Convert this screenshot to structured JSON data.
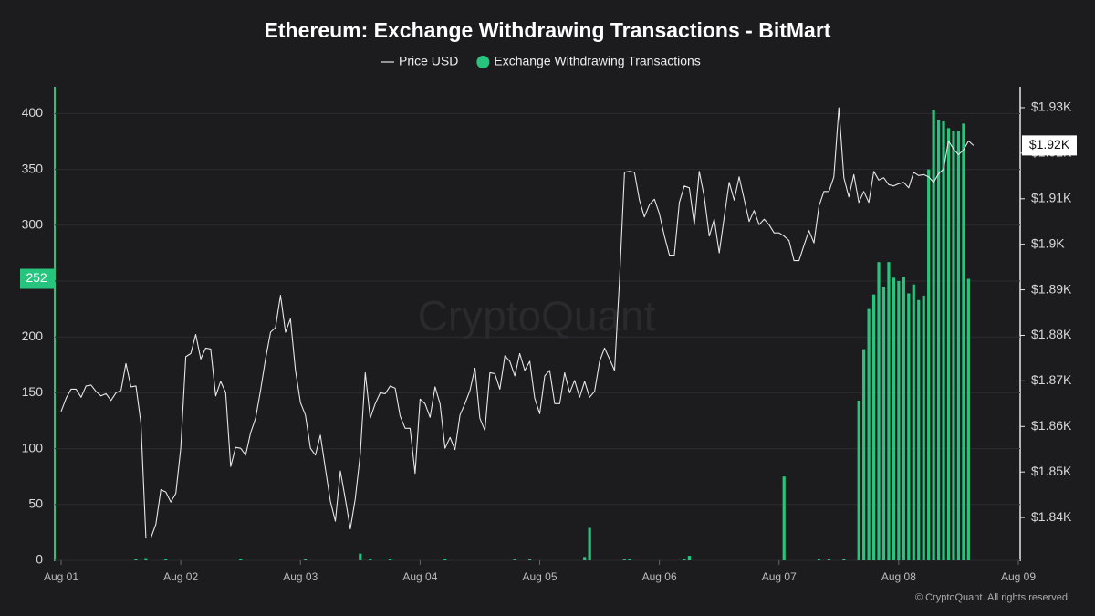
{
  "chart_data": {
    "type": "bar-line",
    "title": "Ethereum: Exchange Withdrawing Transactions - BitMart",
    "watermark": "CryptoQuant",
    "source": "© CryptoQuant. All rights reserved",
    "categories": [
      "Aug 01",
      null,
      null,
      null,
      null,
      null,
      null,
      null,
      null,
      null,
      null,
      null,
      null,
      null,
      null,
      null,
      null,
      null,
      null,
      null,
      null,
      null,
      null,
      null,
      "Aug 02",
      null,
      null,
      null,
      null,
      null,
      null,
      null,
      null,
      null,
      null,
      null,
      null,
      null,
      null,
      null,
      null,
      null,
      null,
      null,
      null,
      null,
      null,
      null,
      "Aug 03",
      null,
      null,
      null,
      null,
      null,
      null,
      null,
      null,
      null,
      null,
      null,
      null,
      null,
      null,
      null,
      null,
      null,
      null,
      null,
      null,
      null,
      null,
      null,
      "Aug 04",
      null,
      null,
      null,
      null,
      null,
      null,
      null,
      null,
      null,
      null,
      null,
      null,
      null,
      null,
      null,
      null,
      null,
      null,
      null,
      null,
      null,
      null,
      null,
      "Aug 05",
      null,
      null,
      null,
      null,
      null,
      null,
      null,
      null,
      null,
      null,
      null,
      null,
      null,
      null,
      null,
      null,
      null,
      null,
      null,
      null,
      null,
      null,
      null,
      "Aug 06",
      null,
      null,
      null,
      null,
      null,
      null,
      null,
      null,
      null,
      null,
      null,
      null,
      null,
      null,
      null,
      null,
      null,
      null,
      null,
      null,
      null,
      null,
      null,
      "Aug 07",
      null,
      null,
      null,
      null,
      null,
      null,
      null,
      null,
      null,
      null,
      null,
      null,
      null,
      null,
      null,
      null,
      null,
      null,
      null,
      null,
      null,
      null,
      null,
      "Aug 08",
      null,
      null,
      null,
      null,
      null,
      null,
      null,
      null,
      null,
      null,
      null,
      null,
      null,
      null,
      null,
      null,
      null,
      null,
      null,
      null,
      null,
      null,
      null,
      "Aug 09"
    ],
    "series": [
      {
        "name": "Price USD",
        "type": "line",
        "axis": "y2",
        "color": "#e6e6e6",
        "values": [
          1863.3,
          1866.2,
          1868.2,
          1868.2,
          1866.4,
          1868.9,
          1869.1,
          1867.7,
          1866.7,
          1867.2,
          1865.7,
          1867.4,
          1867.9,
          1873.8,
          1868.7,
          1868.9,
          1860.8,
          1835.5,
          1835.5,
          1838.5,
          1846.1,
          1845.6,
          1843.4,
          1845.3,
          1855.2,
          1875.3,
          1876.0,
          1880.2,
          1874.8,
          1877.2,
          1877.0,
          1866.7,
          1869.9,
          1867.4,
          1851.2,
          1855.4,
          1855.2,
          1853.7,
          1858.6,
          1861.8,
          1867.9,
          1874.8,
          1880.7,
          1881.7,
          1888.8,
          1880.7,
          1883.6,
          1872.3,
          1865.2,
          1862.5,
          1855.2,
          1853.7,
          1858.1,
          1850.7,
          1843.6,
          1839.2,
          1850.2,
          1844.1,
          1837.5,
          1844.1,
          1853.9,
          1871.8,
          1861.8,
          1865.0,
          1867.4,
          1867.2,
          1868.9,
          1868.4,
          1862.3,
          1859.6,
          1859.6,
          1849.7,
          1866.0,
          1865.0,
          1862.0,
          1868.7,
          1865.0,
          1855.2,
          1857.6,
          1854.9,
          1862.5,
          1865.0,
          1867.9,
          1872.8,
          1861.8,
          1859.1,
          1871.8,
          1871.6,
          1868.2,
          1875.5,
          1874.3,
          1871.1,
          1876.0,
          1872.3,
          1874.3,
          1866.2,
          1862.8,
          1871.1,
          1872.3,
          1865.0,
          1865.0,
          1871.8,
          1867.4,
          1870.1,
          1866.4,
          1869.9,
          1866.4,
          1867.7,
          1874.3,
          1877.2,
          1874.8,
          1872.3,
          1892.0,
          1915.8,
          1916.0,
          1915.8,
          1909.7,
          1906.0,
          1908.7,
          1909.9,
          1906.7,
          1901.8,
          1897.6,
          1897.6,
          1909.2,
          1912.8,
          1912.4,
          1904.3,
          1916.0,
          1910.4,
          1901.8,
          1905.5,
          1898.1,
          1906.0,
          1913.6,
          1909.7,
          1914.8,
          1909.9,
          1905.0,
          1907.4,
          1904.3,
          1905.5,
          1904.3,
          1902.5,
          1902.5,
          1901.8,
          1900.8,
          1896.4,
          1896.4,
          1899.8,
          1903.0,
          1900.3,
          1908.4,
          1911.6,
          1911.6,
          1914.8,
          1930.0,
          1914.6,
          1910.4,
          1915.3,
          1909.2,
          1911.6,
          1909.2,
          1916.0,
          1914.1,
          1914.6,
          1913.1,
          1912.8,
          1913.3,
          1913.6,
          1912.4,
          1915.8,
          1915.1,
          1915.3,
          1914.8,
          1913.6,
          1915.5,
          1916.5,
          1922.7,
          1920.9,
          1919.7,
          1920.7,
          1922.7,
          1921.7,
          null,
          null,
          null,
          null,
          null,
          null,
          null,
          null,
          null
        ],
        "value_labels": [
          null,
          null,
          null,
          null,
          null,
          null,
          null,
          null,
          null,
          null,
          null,
          null,
          null,
          null,
          null,
          null,
          null,
          null,
          null,
          null,
          null,
          null,
          null,
          null,
          null,
          null,
          null,
          null,
          null,
          null,
          null,
          null,
          null,
          null,
          null,
          null,
          null,
          null,
          null,
          null,
          null,
          null,
          null,
          null,
          null,
          null,
          null,
          null,
          null,
          null,
          null,
          null,
          null,
          null,
          null,
          null,
          null,
          null,
          null,
          null,
          null,
          null,
          null,
          null,
          null,
          null,
          null,
          null,
          null,
          null,
          null,
          null,
          null,
          null,
          null,
          null,
          null,
          null,
          null,
          null,
          null,
          null,
          null,
          null,
          null,
          null,
          null,
          null,
          null,
          null,
          null,
          null,
          null,
          null,
          null,
          null,
          null,
          null,
          null,
          null,
          null,
          null,
          null,
          null,
          null,
          null,
          null,
          null,
          null,
          null,
          null,
          null,
          null,
          null,
          null,
          null,
          null,
          null,
          null,
          null,
          null,
          null,
          null,
          null,
          null,
          null,
          null,
          null,
          null,
          null,
          null,
          null,
          null,
          null,
          null,
          null,
          null,
          null,
          null,
          null,
          null,
          null,
          null,
          null,
          null,
          null,
          null,
          null,
          null,
          null,
          null,
          null,
          null,
          null,
          null,
          null,
          null,
          null,
          null,
          null,
          null,
          null,
          null,
          null,
          null,
          null,
          null,
          null,
          null,
          null,
          null,
          null,
          null,
          null,
          null,
          null,
          null,
          null,
          null,
          null,
          null,
          null,
          null,
          "$1.92K",
          null,
          null,
          null,
          null,
          null,
          null,
          null,
          null,
          null
        ]
      },
      {
        "name": "Exchange Withdrawing Transactions",
        "type": "bar",
        "color": "#27c47d",
        "values": [
          0,
          0,
          0,
          0,
          0,
          0,
          0,
          0,
          0,
          0,
          0,
          0,
          0,
          0,
          0,
          1,
          0,
          2,
          0,
          0,
          0,
          1,
          0,
          0,
          0,
          0,
          0,
          0,
          0,
          0,
          0,
          0,
          0,
          0,
          0,
          0,
          1,
          0,
          0,
          0,
          0,
          0,
          0,
          0,
          0,
          0,
          0,
          0,
          0,
          1,
          0,
          0,
          0,
          0,
          0,
          0,
          0,
          0,
          0,
          0,
          6,
          0,
          1,
          0,
          0,
          0,
          1,
          0,
          0,
          0,
          0,
          0,
          0,
          0,
          0,
          0,
          0,
          1,
          0,
          0,
          0,
          0,
          0,
          0,
          0,
          0,
          0,
          0,
          0,
          0,
          0,
          1,
          0,
          0,
          1,
          0,
          0,
          0,
          0,
          0,
          0,
          0,
          0,
          0,
          0,
          3,
          29,
          0,
          0,
          0,
          0,
          0,
          0,
          1,
          1,
          0,
          0,
          0,
          0,
          0,
          0,
          0,
          0,
          0,
          0,
          1,
          4,
          0,
          0,
          0,
          0,
          0,
          0,
          0,
          0,
          0,
          0,
          0,
          0,
          0,
          0,
          0,
          0,
          0,
          0,
          75,
          0,
          0,
          0,
          0,
          0,
          0,
          1,
          0,
          1,
          0,
          0,
          1,
          0,
          0,
          143,
          189,
          225,
          238,
          267,
          245,
          267,
          253,
          250,
          254,
          239,
          247,
          233,
          237,
          350,
          403,
          394,
          393,
          387,
          384,
          384,
          391,
          252,
          null,
          null,
          null,
          null,
          null,
          null,
          null,
          null,
          null,
          null
        ]
      }
    ],
    "ylim": [
      0,
      424
    ],
    "yticks": [
      0,
      50,
      100,
      150,
      200,
      250,
      300,
      350,
      400
    ],
    "y2lim": [
      1830.6,
      1934.6
    ],
    "y2ticks": [
      {
        "value": 1840,
        "label": "$1.84K"
      },
      {
        "value": 1850,
        "label": "$1.85K"
      },
      {
        "value": 1860,
        "label": "$1.86K"
      },
      {
        "value": 1870,
        "label": "$1.87K"
      },
      {
        "value": 1880,
        "label": "$1.88K"
      },
      {
        "value": 1890,
        "label": "$1.89K"
      },
      {
        "value": 1900,
        "label": "$1.9K"
      },
      {
        "value": 1910,
        "label": "$1.91K"
      },
      {
        "value": 1920,
        "label": "$1.92K"
      },
      {
        "value": 1930,
        "label": "$1.93K"
      }
    ],
    "grid": true
  }
}
